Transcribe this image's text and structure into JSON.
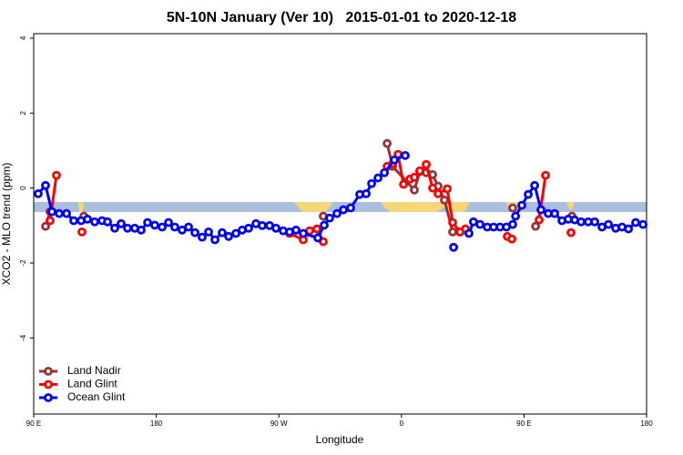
{
  "chart_data": {
    "type": "line",
    "title": "5N-10N January (Ver 10)   2015-01-01 to 2020-12-18",
    "xlabel": "Longitude",
    "ylabel": "XCO2 - MLO trend (ppm)",
    "xlim": [
      90,
      540
    ],
    "ylim": [
      -6.03,
      4.12
    ],
    "xticks": [
      {
        "value": 90,
        "label": "90 E"
      },
      {
        "value": 180,
        "label": "180"
      },
      {
        "value": 270,
        "label": "90 W"
      },
      {
        "value": 360,
        "label": "0"
      },
      {
        "value": 450,
        "label": "90 E"
      },
      {
        "value": 540,
        "label": "180"
      }
    ],
    "yticks": [
      -4,
      -2,
      0,
      2,
      4
    ],
    "legend": "bottom-left",
    "series": [
      {
        "name": "Land Nadir",
        "color": "#993333",
        "x": [
          98.7,
          102.0,
          null,
          126.8,
          null,
          302.6,
          null,
          349.5,
          353.5,
          369.5,
          373.5,
          378.2,
          382.9,
          386.9,
          391.6,
          397.6,
          403.0,
          null,
          441.7,
          null,
          458.5,
          462.5,
          null,
          485.2
        ],
        "values": [
          -1.02,
          -0.63,
          null,
          -0.75,
          null,
          -0.75,
          null,
          1.19,
          0.58,
          -0.05,
          0.44,
          0.41,
          0.36,
          0.05,
          -0.32,
          -1.17,
          -1.17,
          null,
          -0.53,
          null,
          -1.02,
          -0.58,
          null,
          -0.75
        ]
      },
      {
        "name": "Land Glint",
        "color": "#ff0000",
        "x": [
          102.0,
          106.7,
          null,
          125.4,
          null,
          277.9,
          287.9,
          292.6,
          298.0,
          302.6,
          null,
          349.5,
          353.5,
          357.5,
          361.5,
          366.2,
          369.5,
          373.5,
          378.2,
          382.9,
          386.9,
          393.6,
          397.6,
          403.0,
          407.0,
          null,
          437.7,
          441.1,
          null,
          461.1,
          465.8,
          null,
          484.5
        ],
        "values": [
          -0.87,
          0.34,
          null,
          -1.17,
          null,
          -1.21,
          -1.38,
          -1.14,
          -1.09,
          -1.43,
          null,
          0.58,
          0.65,
          0.9,
          0.1,
          0.24,
          0.29,
          0.46,
          0.63,
          0.0,
          -0.15,
          -0.02,
          -0.92,
          -1.17,
          -1.09,
          null,
          -1.29,
          -1.36,
          null,
          -0.85,
          0.34,
          null,
          -1.19
        ]
      },
      {
        "name": "Ocean Glint",
        "color": "#0000ff",
        "x": [
          93.3,
          98.7,
          103.4,
          108.7,
          114.1,
          119.4,
          124.8,
          129.5,
          134.8,
          140.2,
          144.2,
          149.5,
          154.2,
          158.9,
          164.2,
          168.9,
          173.6,
          178.9,
          184.3,
          189.0,
          193.6,
          199.0,
          203.7,
          208.4,
          213.7,
          218.4,
          223.1,
          228.4,
          233.1,
          238.5,
          243.1,
          247.8,
          253.2,
          257.8,
          263.2,
          267.9,
          273.2,
          277.9,
          282.6,
          287.9,
          298.6,
          303.3,
          307.3,
          312.7,
          317.4,
          322.7,
          329.4,
          334.1,
          338.1,
          342.8,
          347.5,
          354.8,
          362.8,
          null,
          398.3,
          null,
          409.6,
          412.9,
          417.7,
          423.0,
          427.7,
          432.4,
          437.1,
          441.7,
          443.8,
          448.4,
          453.1,
          457.8,
          462.5,
          467.8,
          472.5,
          477.9,
          482.5,
          487.2,
          491.9,
          497.2,
          501.9,
          507.3,
          512.0,
          517.3,
          522.0,
          526.7,
          532.0,
          537.4
        ],
        "values": [
          -0.15,
          0.07,
          -0.63,
          -0.68,
          -0.68,
          -0.87,
          -0.87,
          -0.83,
          -0.9,
          -0.87,
          -0.9,
          -1.07,
          -0.95,
          -1.07,
          -1.07,
          -1.12,
          -0.92,
          -0.99,
          -1.04,
          -0.92,
          -1.04,
          -1.12,
          -1.04,
          -1.19,
          -1.31,
          -1.17,
          -1.38,
          -1.19,
          -1.29,
          -1.21,
          -1.12,
          -1.07,
          -0.95,
          -1.0,
          -1.0,
          -1.07,
          -1.14,
          -1.17,
          -1.12,
          -1.21,
          -1.33,
          -0.99,
          -0.8,
          -0.68,
          -0.58,
          -0.53,
          -0.17,
          -0.15,
          0.12,
          0.27,
          0.41,
          0.75,
          0.87,
          null,
          -1.58,
          null,
          -1.21,
          -0.9,
          -0.97,
          -1.04,
          -1.04,
          -1.04,
          -1.04,
          -0.97,
          -0.75,
          -0.46,
          -0.17,
          0.07,
          -0.58,
          -0.68,
          -0.68,
          -0.87,
          -0.83,
          -0.85,
          -0.9,
          -0.9,
          -0.9,
          -1.04,
          -0.97,
          -1.07,
          -1.04,
          -1.09,
          -0.92,
          -0.97
        ]
      }
    ]
  }
}
